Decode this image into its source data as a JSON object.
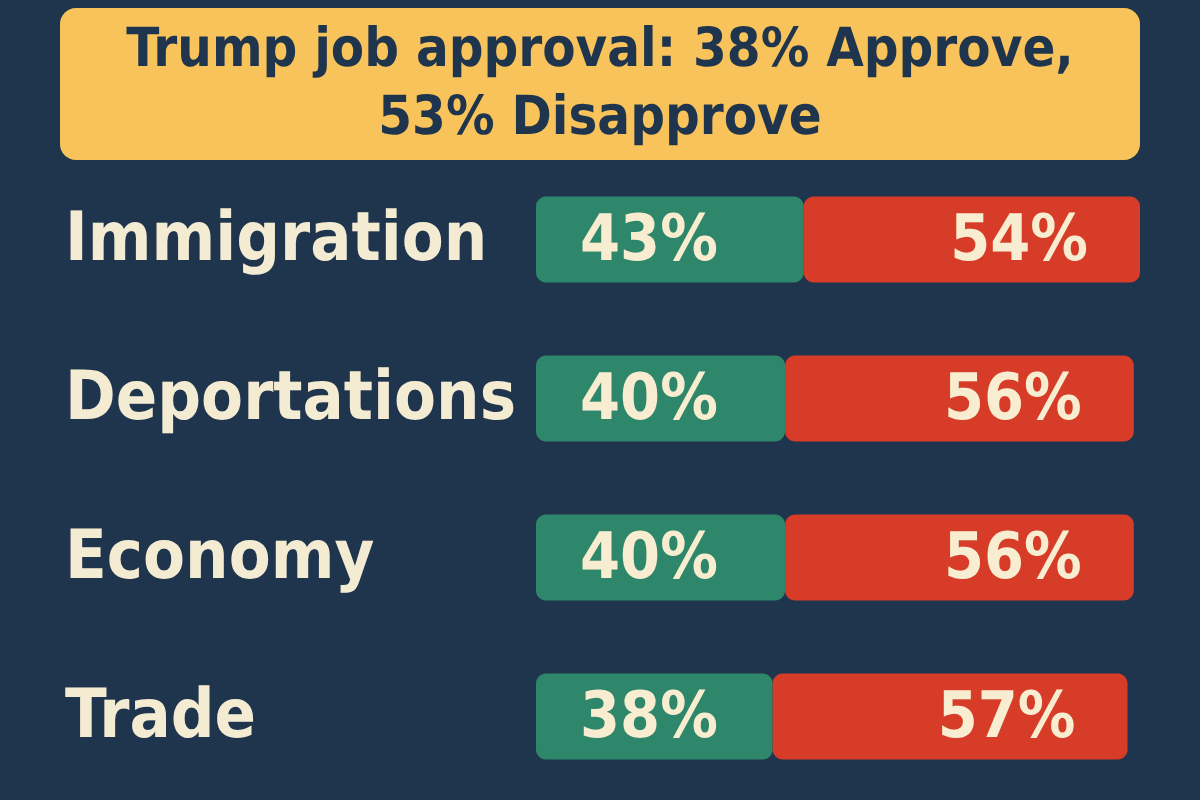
{
  "chart_data": {
    "type": "bar",
    "orientation": "horizontal",
    "stacked": true,
    "title": "Trump job approval: 38% Approve, 53% Disapprove",
    "categories": [
      "Immigration",
      "Deportations",
      "Economy",
      "Trade"
    ],
    "series": [
      {
        "color": "#2e876a",
        "values": [
          43,
          40,
          40,
          38
        ],
        "value_labels": [
          "43%",
          "40%",
          "40%",
          "38%"
        ]
      },
      {
        "color": "#d63c27",
        "values": [
          54,
          56,
          56,
          57
        ],
        "value_labels": [
          "54%",
          "56%",
          "56%",
          "57%"
        ]
      }
    ],
    "legend": false
  }
}
